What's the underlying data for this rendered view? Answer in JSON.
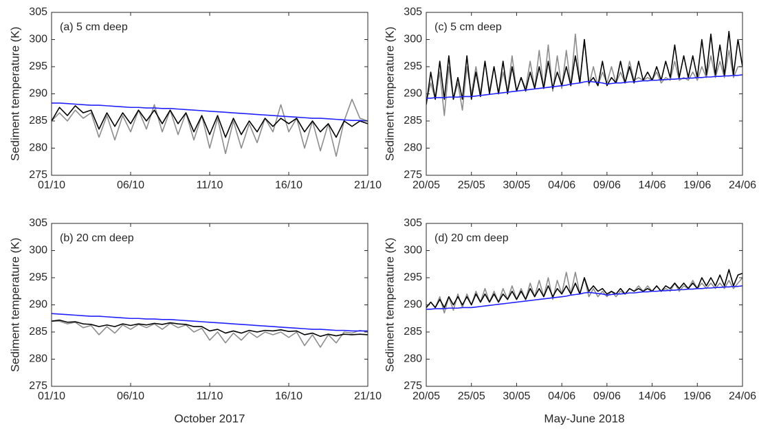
{
  "chart_data": [
    {
      "type": "line",
      "annotation": "(a) 5 cm deep",
      "ylabel": "Sediment temperature (K)",
      "xlim": [
        0,
        20
      ],
      "xticks": [
        {
          "value": 0,
          "label": "01/10"
        },
        {
          "value": 5,
          "label": "06/10"
        },
        {
          "value": 10,
          "label": "11/10"
        },
        {
          "value": 15,
          "label": "16/10"
        },
        {
          "value": 20,
          "label": "21/10"
        }
      ],
      "ylim": [
        275,
        305
      ],
      "yticks": [
        275,
        280,
        285,
        290,
        295,
        300,
        305
      ],
      "x": [
        0,
        0.5,
        1,
        1.5,
        2,
        2.5,
        3,
        3.5,
        4,
        4.5,
        5,
        5.5,
        6,
        6.5,
        7,
        7.5,
        8,
        8.5,
        9,
        9.5,
        10,
        10.5,
        11,
        11.5,
        12,
        12.5,
        13,
        13.5,
        14,
        14.5,
        15,
        15.5,
        16,
        16.5,
        17,
        17.5,
        18,
        18.5,
        19,
        19.5,
        20
      ],
      "series": [
        {
          "color": "#8c8c8c",
          "values": [
            285,
            286.5,
            285,
            287,
            285.5,
            286.5,
            282,
            286,
            281.5,
            286,
            283,
            287,
            283.5,
            288,
            283,
            287,
            282.5,
            286.5,
            281.5,
            286,
            280,
            285.5,
            279,
            285,
            280,
            284.5,
            281,
            285.5,
            283,
            288,
            283,
            285.5,
            280,
            285,
            279.5,
            284.5,
            278.5,
            285,
            289,
            285.5,
            285
          ]
        },
        {
          "color": "#000000",
          "values": [
            285,
            287.5,
            286,
            287.8,
            286.5,
            287,
            283.5,
            286.5,
            284,
            286.5,
            284.5,
            287,
            285,
            287,
            284.5,
            287,
            284.5,
            286.5,
            283,
            286,
            282.5,
            286,
            282,
            285.5,
            282.5,
            285,
            283,
            285.5,
            284,
            285.5,
            284.5,
            285.5,
            283,
            285,
            283,
            284.5,
            282,
            285,
            284,
            285,
            284.5
          ]
        },
        {
          "color": "#2020ff",
          "values": [
            288.3,
            288.3,
            288.2,
            288.1,
            288.0,
            287.9,
            287.9,
            287.8,
            287.7,
            287.6,
            287.5,
            287.5,
            287.4,
            287.4,
            287.3,
            287.3,
            287.2,
            287.1,
            287.0,
            286.9,
            286.8,
            286.7,
            286.6,
            286.5,
            286.4,
            286.3,
            286.2,
            286.1,
            286.0,
            285.9,
            285.8,
            285.7,
            285.6,
            285.5,
            285.5,
            285.4,
            285.3,
            285.2,
            285.1,
            285.1,
            285.0
          ]
        }
      ]
    },
    {
      "type": "line",
      "annotation": "(b) 20 cm deep",
      "ylabel": "Sediment temperature (K)",
      "xlabel": "October 2017",
      "xlim": [
        0,
        20
      ],
      "xticks": [
        {
          "value": 0,
          "label": "01/10"
        },
        {
          "value": 5,
          "label": "06/10"
        },
        {
          "value": 10,
          "label": "11/10"
        },
        {
          "value": 15,
          "label": "16/10"
        },
        {
          "value": 20,
          "label": "21/10"
        }
      ],
      "ylim": [
        275,
        305
      ],
      "yticks": [
        275,
        280,
        285,
        290,
        295,
        300,
        305
      ],
      "x": [
        0,
        0.5,
        1,
        1.5,
        2,
        2.5,
        3,
        3.5,
        4,
        4.5,
        5,
        5.5,
        6,
        6.5,
        7,
        7.5,
        8,
        8.5,
        9,
        9.5,
        10,
        10.5,
        11,
        11.5,
        12,
        12.5,
        13,
        13.5,
        14,
        14.5,
        15,
        15.5,
        16,
        16.5,
        17,
        17.5,
        18,
        18.5,
        19,
        19.5,
        20
      ],
      "series": [
        {
          "color": "#8c8c8c",
          "values": [
            287,
            287,
            286.5,
            286.8,
            285.8,
            286.2,
            284.5,
            286,
            284.8,
            286.3,
            285.5,
            286.4,
            285.8,
            286.5,
            285.5,
            286.6,
            285.8,
            286.3,
            285,
            285.7,
            283.5,
            285,
            283,
            284.8,
            283.5,
            285,
            284,
            285,
            284.5,
            285,
            284,
            285,
            282.5,
            284.5,
            282.2,
            284.5,
            283,
            285,
            284.8,
            285.3,
            285
          ]
        },
        {
          "color": "#000000",
          "values": [
            287,
            287.2,
            286.8,
            286.9,
            286.5,
            286.4,
            286,
            286.3,
            286,
            286.5,
            286.2,
            286.5,
            286.3,
            286.6,
            286.4,
            286.7,
            286.5,
            286.4,
            286,
            286,
            285.2,
            285.5,
            284.8,
            285.2,
            284.8,
            285.3,
            285,
            285.3,
            285.2,
            285.4,
            285.1,
            285.2,
            284.5,
            284.8,
            284.2,
            284.6,
            284.3,
            284.6,
            284.5,
            284.6,
            284.5
          ]
        },
        {
          "color": "#2020ff",
          "values": [
            288.4,
            288.3,
            288.2,
            288.1,
            288.0,
            287.9,
            287.9,
            287.8,
            287.7,
            287.6,
            287.5,
            287.5,
            287.4,
            287.4,
            287.3,
            287.3,
            287.2,
            287.1,
            287.0,
            286.9,
            286.8,
            286.7,
            286.6,
            286.5,
            286.4,
            286.3,
            286.2,
            286.1,
            286.0,
            285.9,
            285.8,
            285.7,
            285.6,
            285.5,
            285.5,
            285.4,
            285.3,
            285.3,
            285.2,
            285.2,
            285.2
          ]
        }
      ]
    },
    {
      "type": "line",
      "annotation": "(c) 5 cm deep",
      "ylabel": "Sediment temperature (K)",
      "xlim": [
        0,
        35
      ],
      "xticks": [
        {
          "value": 0,
          "label": "20/05"
        },
        {
          "value": 5,
          "label": "25/05"
        },
        {
          "value": 10,
          "label": "30/05"
        },
        {
          "value": 15,
          "label": "04/06"
        },
        {
          "value": 20,
          "label": "09/06"
        },
        {
          "value": 25,
          "label": "14/06"
        },
        {
          "value": 30,
          "label": "19/06"
        },
        {
          "value": 35,
          "label": "24/06"
        }
      ],
      "ylim": [
        275,
        305
      ],
      "yticks": [
        275,
        280,
        285,
        290,
        295,
        300,
        305
      ],
      "x": [
        0,
        0.5,
        1,
        1.5,
        2,
        2.5,
        3,
        3.5,
        4,
        4.5,
        5,
        5.5,
        6,
        6.5,
        7,
        7.5,
        8,
        8.5,
        9,
        9.5,
        10,
        10.5,
        11,
        11.5,
        12,
        12.5,
        13,
        13.5,
        14,
        14.5,
        15,
        15.5,
        16,
        16.5,
        17,
        17.5,
        18,
        18.5,
        19,
        19.5,
        20,
        20.5,
        21,
        21.5,
        22,
        22.5,
        23,
        23.5,
        24,
        24.5,
        25,
        25.5,
        26,
        26.5,
        27,
        27.5,
        28,
        28.5,
        29,
        29.5,
        30,
        30.5,
        31,
        31.5,
        32,
        32.5,
        33,
        33.5,
        34,
        34.5,
        35
      ],
      "series": [
        {
          "color": "#8c8c8c",
          "values": [
            288.5,
            292,
            289,
            294,
            286,
            295,
            289,
            292,
            287,
            295,
            290,
            295,
            290,
            296,
            290.5,
            295,
            290,
            294,
            290.5,
            297,
            290.5,
            293,
            291,
            296,
            291,
            298,
            291,
            299,
            290.5,
            297,
            291,
            298,
            291.5,
            301,
            292,
            300,
            291.5,
            295,
            291.5,
            294,
            292,
            295,
            292,
            294,
            292,
            296,
            292.5,
            293,
            292.5,
            293,
            292.5,
            294,
            292,
            293,
            292.5,
            296,
            292.5,
            293,
            292.5,
            294,
            292.5,
            295,
            293,
            297,
            293,
            296,
            293,
            298,
            293,
            295,
            295
          ]
        },
        {
          "color": "#000000",
          "values": [
            288,
            294,
            289,
            296,
            289,
            297,
            289,
            293,
            289,
            297,
            289,
            294,
            289.5,
            296,
            290,
            295,
            290,
            296,
            290,
            295,
            290.5,
            293,
            290.5,
            294,
            291,
            295,
            291,
            296,
            291,
            294,
            291.5,
            295,
            291.5,
            297,
            292,
            300,
            292,
            293,
            291.5,
            296,
            291.5,
            293,
            292,
            296,
            292,
            295,
            292,
            296,
            292.5,
            294,
            292.5,
            295,
            292.5,
            296,
            293,
            299,
            293,
            297,
            293,
            297,
            293,
            300,
            293.5,
            301,
            293.5,
            299,
            293.5,
            301.5,
            293.5,
            300,
            295
          ]
        },
        {
          "color": "#2020ff",
          "values": [
            289.2,
            289.2,
            289.3,
            289.3,
            289.3,
            289.4,
            289.4,
            289.4,
            289.5,
            289.5,
            289.5,
            289.6,
            289.7,
            289.8,
            289.9,
            290.0,
            290.1,
            290.2,
            290.3,
            290.4,
            290.5,
            290.6,
            290.7,
            290.8,
            290.9,
            291.0,
            291.1,
            291.2,
            291.3,
            291.4,
            291.5,
            291.6,
            291.8,
            291.9,
            292.0,
            292.2,
            292.3,
            292.2,
            292.1,
            292.0,
            291.8,
            291.9,
            292.0,
            292.0,
            292.1,
            292.2,
            292.2,
            292.3,
            292.4,
            292.4,
            292.5,
            292.5,
            292.6,
            292.6,
            292.7,
            292.7,
            292.8,
            292.8,
            292.9,
            292.9,
            293.0,
            293.0,
            293.1,
            293.1,
            293.2,
            293.2,
            293.3,
            293.3,
            293.4,
            293.4,
            293.5
          ]
        }
      ]
    },
    {
      "type": "line",
      "annotation": "(d) 20 cm deep",
      "ylabel": "Sediment temperature (K)",
      "xlabel": "May-June 2018",
      "xlim": [
        0,
        35
      ],
      "xticks": [
        {
          "value": 0,
          "label": "20/05"
        },
        {
          "value": 5,
          "label": "25/05"
        },
        {
          "value": 10,
          "label": "30/05"
        },
        {
          "value": 15,
          "label": "04/06"
        },
        {
          "value": 20,
          "label": "09/06"
        },
        {
          "value": 25,
          "label": "14/06"
        },
        {
          "value": 30,
          "label": "19/06"
        },
        {
          "value": 35,
          "label": "24/06"
        }
      ],
      "ylim": [
        275,
        305
      ],
      "yticks": [
        275,
        280,
        285,
        290,
        295,
        300,
        305
      ],
      "x": [
        0,
        0.5,
        1,
        1.5,
        2,
        2.5,
        3,
        3.5,
        4,
        4.5,
        5,
        5.5,
        6,
        6.5,
        7,
        7.5,
        8,
        8.5,
        9,
        9.5,
        10,
        10.5,
        11,
        11.5,
        12,
        12.5,
        13,
        13.5,
        14,
        14.5,
        15,
        15.5,
        16,
        16.5,
        17,
        17.5,
        18,
        18.5,
        19,
        19.5,
        20,
        20.5,
        21,
        21.5,
        22,
        22.5,
        23,
        23.5,
        24,
        24.5,
        25,
        25.5,
        26,
        26.5,
        27,
        27.5,
        28,
        28.5,
        29,
        29.5,
        30,
        30.5,
        31,
        31.5,
        32,
        32.5,
        33,
        33.5,
        34,
        34.5,
        35
      ],
      "series": [
        {
          "color": "#8c8c8c",
          "values": [
            289.5,
            290.5,
            289.5,
            291.5,
            288.5,
            291.5,
            289,
            292,
            289.5,
            292,
            290,
            292.5,
            290.5,
            293,
            290.5,
            292.5,
            290.5,
            293,
            291,
            293.5,
            291,
            293,
            291,
            294,
            291.5,
            294.5,
            291.5,
            295,
            291,
            294.5,
            292,
            296,
            292,
            296,
            292,
            295,
            291.5,
            293,
            291.5,
            292.5,
            291.5,
            292.5,
            291.5,
            292.5,
            292,
            293,
            292.5,
            293.5,
            292.5,
            293.5,
            292.5,
            293.5,
            292.5,
            293,
            292.5,
            294,
            292.5,
            293.5,
            293,
            294.5,
            293,
            294,
            293,
            294,
            293,
            294,
            293,
            294.5,
            293,
            294,
            295
          ]
        },
        {
          "color": "#000000",
          "values": [
            289.5,
            290.5,
            289.5,
            291,
            289.5,
            291.5,
            290,
            291.5,
            290,
            291.5,
            290,
            292,
            290.5,
            292,
            290.5,
            292,
            290.5,
            292,
            291,
            292.5,
            291,
            292.5,
            291,
            293,
            291.5,
            293,
            291.5,
            293.5,
            291.5,
            293,
            292,
            293.5,
            292,
            294,
            292,
            295,
            292.5,
            293.5,
            292.5,
            293,
            292,
            292.5,
            292,
            293,
            292,
            293,
            292.5,
            293,
            292.5,
            293,
            292.5,
            293.5,
            292.5,
            293.5,
            293,
            294,
            293,
            294,
            293,
            294,
            293,
            295,
            293.5,
            295,
            293.5,
            295.5,
            293.5,
            296.5,
            293.5,
            295.5,
            295.8
          ]
        },
        {
          "color": "#2020ff",
          "values": [
            289.2,
            289.2,
            289.3,
            289.3,
            289.3,
            289.4,
            289.4,
            289.4,
            289.5,
            289.5,
            289.5,
            289.6,
            289.7,
            289.8,
            289.9,
            290.0,
            290.1,
            290.2,
            290.3,
            290.4,
            290.5,
            290.6,
            290.7,
            290.8,
            290.9,
            291.0,
            291.1,
            291.2,
            291.3,
            291.4,
            291.5,
            291.6,
            291.8,
            291.9,
            292.0,
            292.2,
            292.3,
            292.2,
            292.1,
            292.0,
            291.8,
            291.9,
            292.0,
            292.0,
            292.1,
            292.2,
            292.2,
            292.3,
            292.4,
            292.4,
            292.5,
            292.5,
            292.6,
            292.6,
            292.7,
            292.7,
            292.8,
            292.8,
            292.9,
            292.9,
            293.0,
            293.0,
            293.1,
            293.1,
            293.2,
            293.2,
            293.3,
            293.3,
            293.4,
            293.4,
            293.5
          ]
        }
      ]
    }
  ]
}
